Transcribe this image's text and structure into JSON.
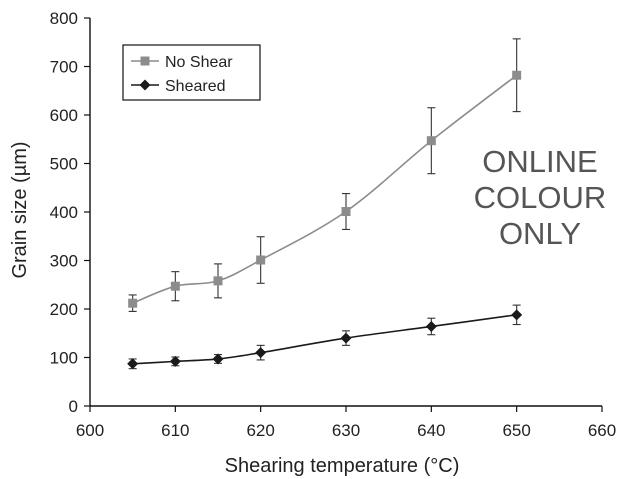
{
  "chart_data": {
    "type": "line",
    "xlabel": "Shearing temperature (°C)",
    "ylabel": "Grain size (µm)",
    "xlim": [
      600,
      660
    ],
    "ylim": [
      0,
      800
    ],
    "xticks": [
      "600",
      "610",
      "620",
      "630",
      "640",
      "650",
      "660"
    ],
    "yticks": [
      "0",
      "100",
      "200",
      "300",
      "400",
      "500",
      "600",
      "700",
      "800"
    ],
    "grid": false,
    "legend_position": "top-left",
    "series": [
      {
        "name": "No Shear",
        "color": "#8c8c8c",
        "marker": "square",
        "x": [
          605,
          610,
          615,
          620,
          630,
          640,
          650
        ],
        "y": [
          212,
          247,
          258,
          301,
          401,
          547,
          682
        ],
        "err": [
          17,
          30,
          35,
          48,
          37,
          68,
          75
        ]
      },
      {
        "name": "Sheared",
        "color": "#1a1a1a",
        "marker": "diamond",
        "x": [
          605,
          610,
          615,
          620,
          630,
          640,
          650
        ],
        "y": [
          87,
          92,
          97,
          110,
          140,
          164,
          188
        ],
        "err": [
          10,
          9,
          9,
          15,
          15,
          17,
          20
        ]
      }
    ]
  },
  "watermark": {
    "lines": [
      "ONLINE",
      "COLOUR",
      "ONLY"
    ]
  }
}
